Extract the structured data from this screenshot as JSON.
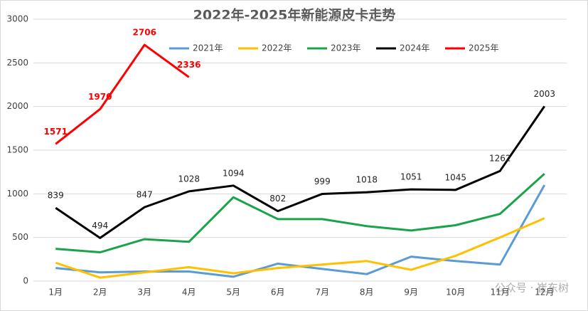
{
  "chart_data": {
    "type": "line",
    "title": "2022年-2025年新能源皮卡走势",
    "categories": [
      "1月",
      "2月",
      "3月",
      "4月",
      "5月",
      "6月",
      "7月",
      "8月",
      "9月",
      "10月",
      "11月",
      "12月"
    ],
    "series": [
      {
        "name": "2021年",
        "color": "#5b9bd5",
        "values": [
          150,
          100,
          110,
          110,
          50,
          200,
          140,
          80,
          280,
          230,
          190,
          1100
        ]
      },
      {
        "name": "2022年",
        "color": "#ffc000",
        "values": [
          210,
          40,
          100,
          160,
          90,
          150,
          190,
          230,
          130,
          290,
          500,
          720
        ]
      },
      {
        "name": "2023年",
        "color": "#1aa34a",
        "values": [
          370,
          330,
          480,
          450,
          960,
          710,
          710,
          630,
          580,
          640,
          770,
          1230
        ]
      },
      {
        "name": "2024年",
        "color": "#000000",
        "values": [
          839,
          494,
          847,
          1028,
          1094,
          802,
          999,
          1018,
          1051,
          1045,
          1262,
          2003
        ],
        "data_labels": true
      },
      {
        "name": "2025年",
        "color": "#ff0000",
        "values": [
          1571,
          1970,
          2706,
          2336,
          null,
          null,
          null,
          null,
          null,
          null,
          null,
          null
        ],
        "data_labels": true
      }
    ],
    "ylim": [
      0,
      3000
    ],
    "yticks": [
      0,
      500,
      1000,
      1500,
      2000,
      2500,
      3000
    ],
    "grid": true,
    "legend": "top",
    "watermark": "公众号 · 崔东树"
  }
}
